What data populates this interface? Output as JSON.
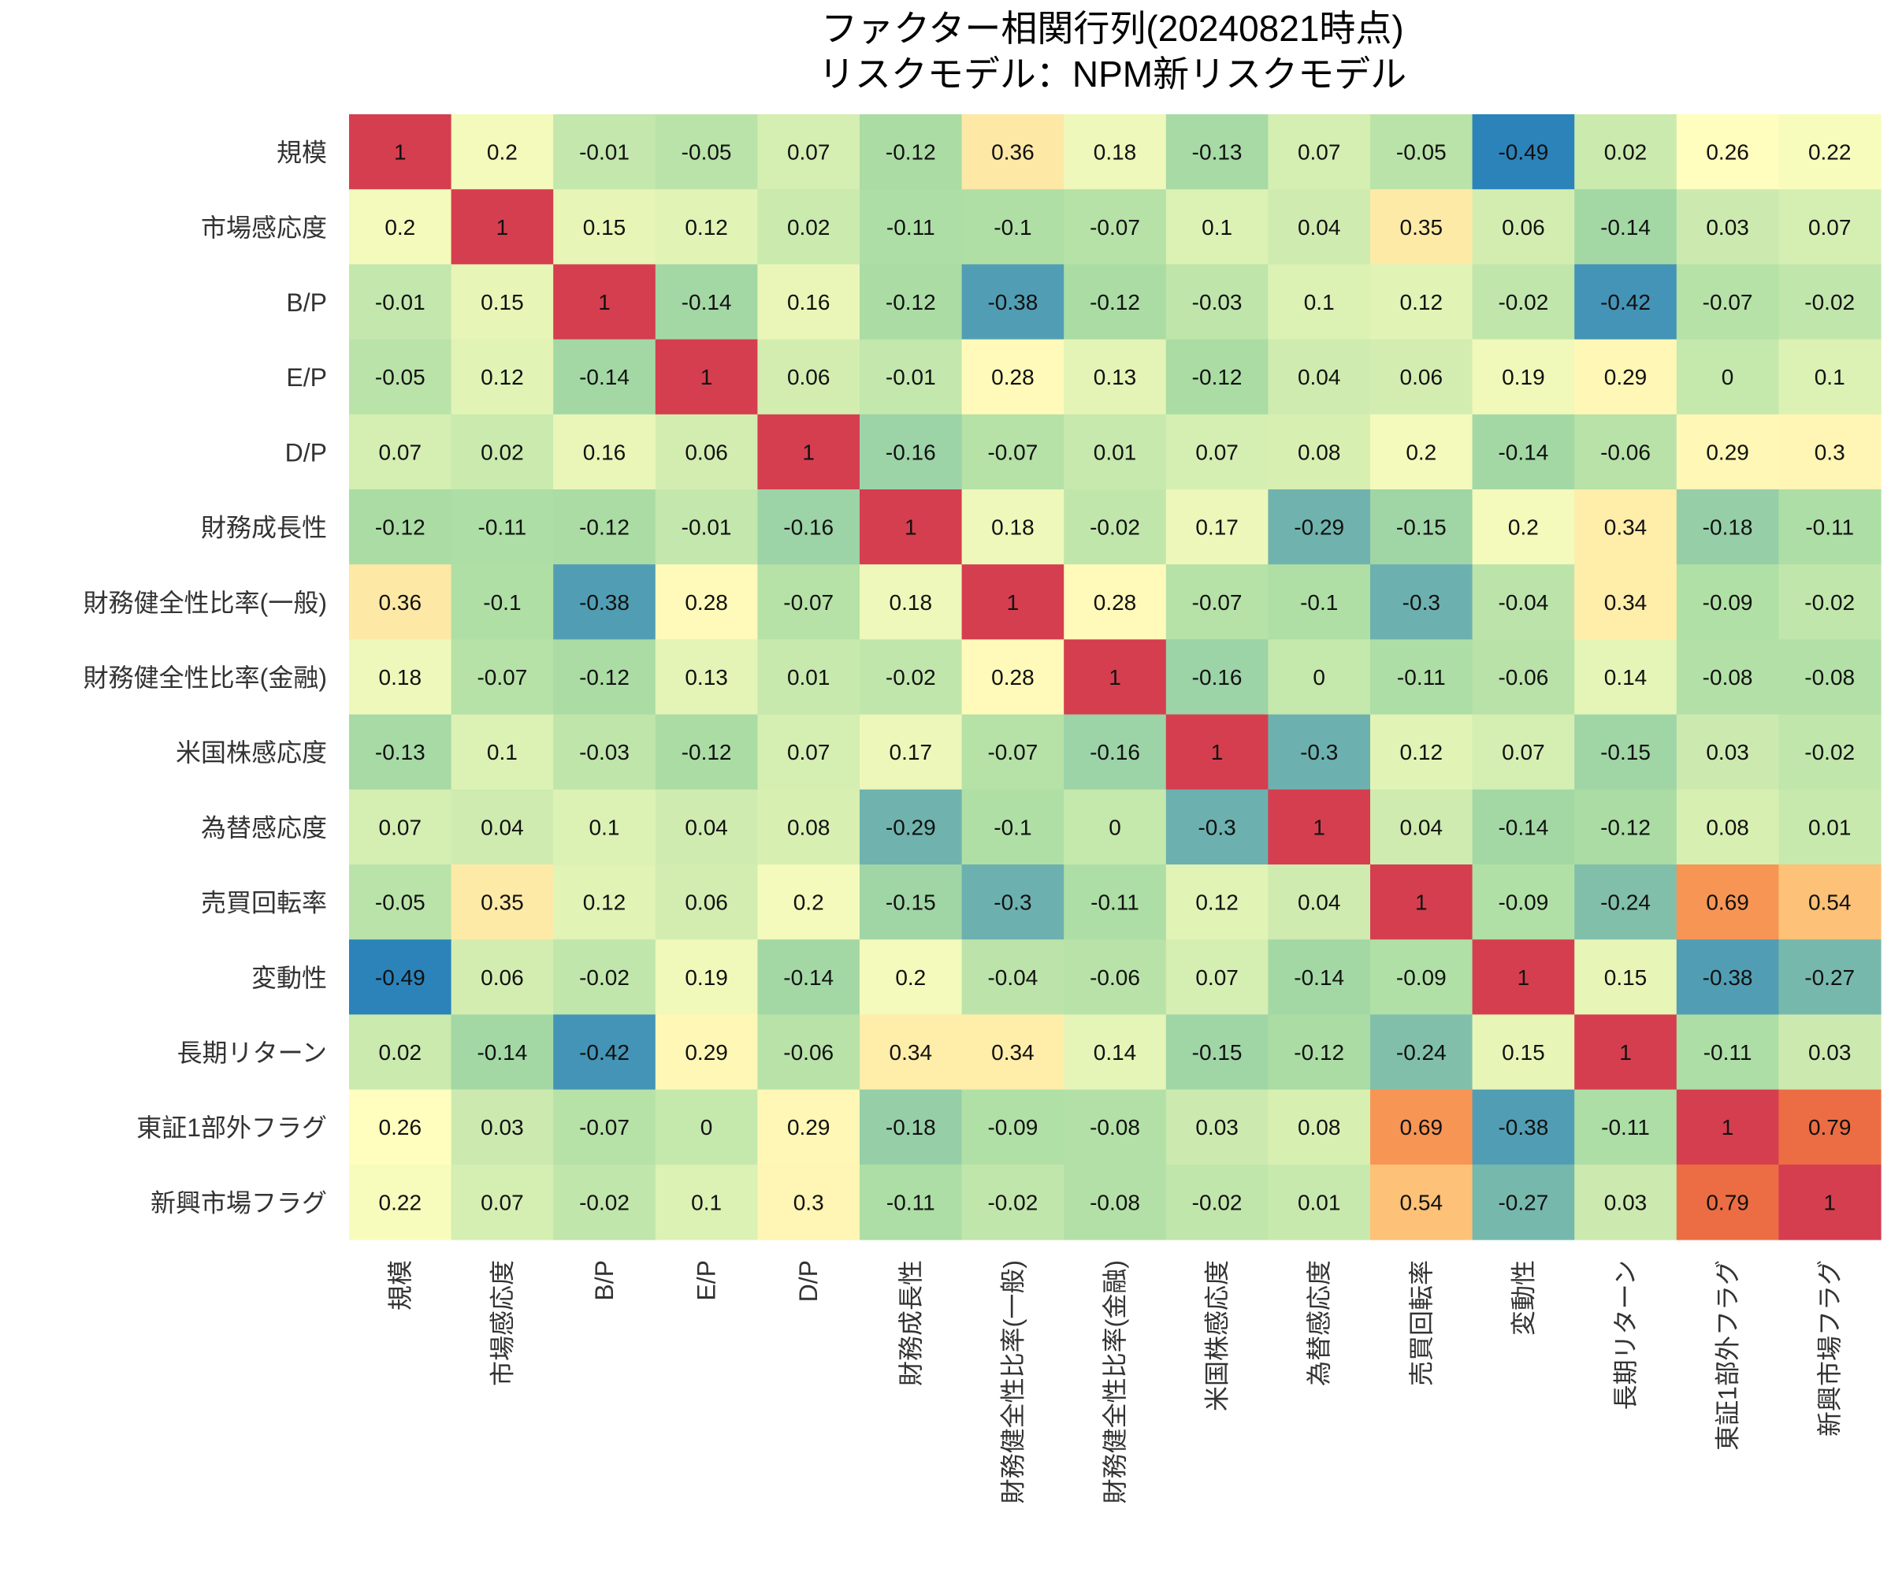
{
  "chart_data": {
    "type": "heatmap",
    "title": "ファクター相関行列(20240821時点)",
    "subtitle": "リスクモデル：NPM新リスクモデル",
    "xlabel": "",
    "ylabel": "",
    "rows": [
      "規模",
      "市場感応度",
      "B/P",
      "E/P",
      "D/P",
      "財務成長性",
      "財務健全性比率(一般)",
      "財務健全性比率(金融)",
      "米国株感応度",
      "為替感応度",
      "売買回転率",
      "変動性",
      "長期リターン",
      "東証1部外フラグ",
      "新興市場フラグ"
    ],
    "columns": [
      "規模",
      "市場感応度",
      "B/P",
      "E/P",
      "D/P",
      "財務成長性",
      "財務健全性比率(一般)",
      "財務健全性比率(金融)",
      "米国株感応度",
      "為替感応度",
      "売買回転率",
      "変動性",
      "長期リターン",
      "東証1部外フラグ",
      "新興市場フラグ"
    ],
    "values": [
      [
        1,
        0.2,
        -0.01,
        -0.05,
        0.07,
        -0.12,
        0.36,
        0.18,
        -0.13,
        0.07,
        -0.05,
        -0.49,
        0.02,
        0.26,
        0.22
      ],
      [
        0.2,
        1,
        0.15,
        0.12,
        0.02,
        -0.11,
        -0.1,
        -0.07,
        0.1,
        0.04,
        0.35,
        0.06,
        -0.14,
        0.03,
        0.07
      ],
      [
        -0.01,
        0.15,
        1,
        -0.14,
        0.16,
        -0.12,
        -0.38,
        -0.12,
        -0.03,
        0.1,
        0.12,
        -0.02,
        -0.42,
        -0.07,
        -0.02
      ],
      [
        -0.05,
        0.12,
        -0.14,
        1,
        0.06,
        -0.01,
        0.28,
        0.13,
        -0.12,
        0.04,
        0.06,
        0.19,
        0.29,
        0,
        0.1
      ],
      [
        0.07,
        0.02,
        0.16,
        0.06,
        1,
        -0.16,
        -0.07,
        0.01,
        0.07,
        0.08,
        0.2,
        -0.14,
        -0.06,
        0.29,
        0.3
      ],
      [
        -0.12,
        -0.11,
        -0.12,
        -0.01,
        -0.16,
        1,
        0.18,
        -0.02,
        0.17,
        -0.29,
        -0.15,
        0.2,
        0.34,
        -0.18,
        -0.11
      ],
      [
        0.36,
        -0.1,
        -0.38,
        0.28,
        -0.07,
        0.18,
        1,
        0.28,
        -0.07,
        -0.1,
        -0.3,
        -0.04,
        0.34,
        -0.09,
        -0.02
      ],
      [
        0.18,
        -0.07,
        -0.12,
        0.13,
        0.01,
        -0.02,
        0.28,
        1,
        -0.16,
        0,
        -0.11,
        -0.06,
        0.14,
        -0.08,
        -0.08
      ],
      [
        -0.13,
        0.1,
        -0.03,
        -0.12,
        0.07,
        0.17,
        -0.07,
        -0.16,
        1,
        -0.3,
        0.12,
        0.07,
        -0.15,
        0.03,
        -0.02
      ],
      [
        0.07,
        0.04,
        0.1,
        0.04,
        0.08,
        -0.29,
        -0.1,
        0,
        -0.3,
        1,
        0.04,
        -0.14,
        -0.12,
        0.08,
        0.01
      ],
      [
        -0.05,
        0.35,
        0.12,
        0.06,
        0.2,
        -0.15,
        -0.3,
        -0.11,
        0.12,
        0.04,
        1,
        -0.09,
        -0.24,
        0.69,
        0.54
      ],
      [
        -0.49,
        0.06,
        -0.02,
        0.19,
        -0.14,
        0.2,
        -0.04,
        -0.06,
        0.07,
        -0.14,
        -0.09,
        1,
        0.15,
        -0.38,
        -0.27
      ],
      [
        0.02,
        -0.14,
        -0.42,
        0.29,
        -0.06,
        0.34,
        0.34,
        0.14,
        -0.15,
        -0.12,
        -0.24,
        0.15,
        1,
        -0.11,
        0.03
      ],
      [
        0.26,
        0.03,
        -0.07,
        0,
        0.29,
        -0.18,
        -0.09,
        -0.08,
        0.03,
        0.08,
        0.69,
        -0.38,
        -0.11,
        1,
        0.79
      ],
      [
        0.22,
        0.07,
        -0.02,
        0.1,
        0.3,
        -0.11,
        -0.02,
        -0.08,
        -0.02,
        0.01,
        0.54,
        -0.27,
        0.03,
        0.79,
        1
      ]
    ],
    "color_scale": {
      "name": "Spectral_r",
      "range": [
        -0.49,
        1
      ],
      "stops": [
        "#2b83ba",
        "#abdda4",
        "#ffffbf",
        "#fdae61",
        "#d7191c"
      ]
    },
    "diagonal_color": "#d53e4f",
    "legend": "none",
    "grid": false
  }
}
